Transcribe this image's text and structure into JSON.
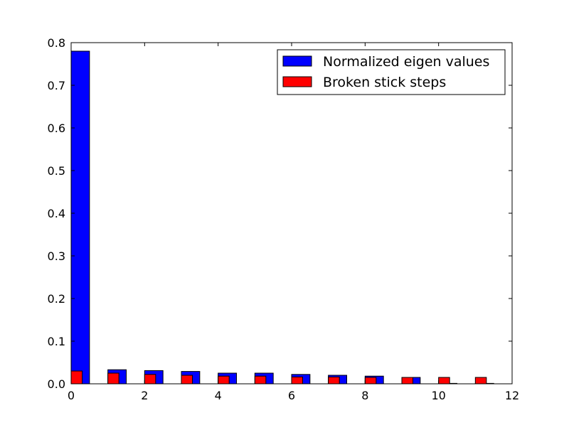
{
  "chart_data": {
    "type": "bar",
    "title": "",
    "xlabel": "",
    "ylabel": "",
    "xlim": [
      0,
      12
    ],
    "ylim": [
      0,
      0.8
    ],
    "x_ticks": [
      "0",
      "2",
      "4",
      "6",
      "8",
      "10",
      "12"
    ],
    "y_ticks": [
      "0.0",
      "0.1",
      "0.2",
      "0.3",
      "0.4",
      "0.5",
      "0.6",
      "0.7",
      "0.8"
    ],
    "grid": false,
    "legend_position": "top-right",
    "series": [
      {
        "name": "Normalized eigen values",
        "color": "#0000ff",
        "bar_width": 0.5,
        "x": [
          0,
          1,
          2,
          3,
          4,
          5,
          6,
          7,
          8,
          9,
          10,
          11
        ],
        "values": [
          0.78,
          0.033,
          0.031,
          0.029,
          0.025,
          0.025,
          0.022,
          0.02,
          0.018,
          0.015,
          0.001,
          0.001
        ]
      },
      {
        "name": "Broken stick steps",
        "color": "#ff0000",
        "bar_width": 0.3,
        "x": [
          0,
          1,
          2,
          3,
          4,
          5,
          6,
          7,
          8,
          9,
          10,
          11
        ],
        "values": [
          0.03,
          0.025,
          0.022,
          0.02,
          0.018,
          0.018,
          0.016,
          0.016,
          0.015,
          0.015,
          0.015,
          0.015
        ]
      }
    ]
  }
}
